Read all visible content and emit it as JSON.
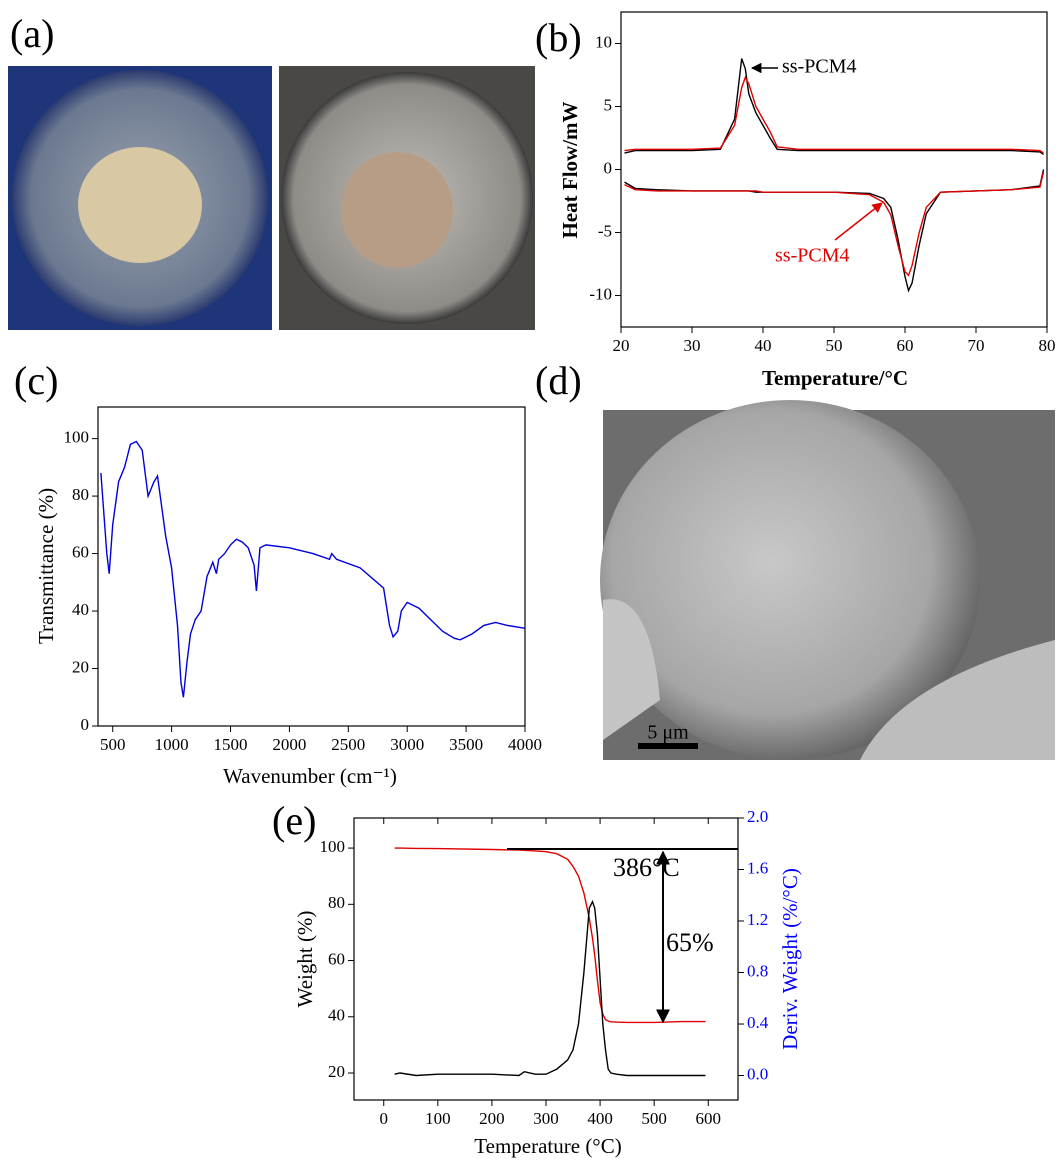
{
  "panel_labels": [
    "(a)",
    "(b)",
    "(c)",
    "(d)",
    "(e)"
  ],
  "scale_bar": "5 μm",
  "chart_data": [
    {
      "type": "line",
      "xlabel": "Temperature/°C",
      "ylabel": "Heat Flow/mW",
      "x": [
        20.5,
        22,
        25,
        30,
        34,
        36,
        37,
        37.5,
        38,
        39,
        40,
        41,
        42,
        45,
        50,
        55,
        57,
        58,
        59,
        60,
        60.5,
        61,
        62,
        63,
        65,
        70,
        75,
        79,
        79.5
      ],
      "series": [
        {
          "color": "#000000",
          "values": [
            1.3,
            1.5,
            1.5,
            1.5,
            1.6,
            4,
            8.8,
            8,
            6,
            4.5,
            3.5,
            2.5,
            1.6,
            1.5,
            1.5,
            1.5,
            1.5,
            1.5,
            1.5,
            1.5,
            1.5,
            1.5,
            1.5,
            1.5,
            1.5,
            1.5,
            1.5,
            1.4,
            1.2
          ]
        },
        {
          "color": "#000000",
          "values": [
            -1.0,
            -1.5,
            -1.6,
            -1.7,
            -1.7,
            -1.7,
            -1.7,
            -1.7,
            -1.7,
            -1.8,
            -1.8,
            -1.8,
            -1.8,
            -1.8,
            -1.8,
            -1.9,
            -2.3,
            -3,
            -5.5,
            -8.5,
            -9.6,
            -9,
            -6,
            -3.5,
            -1.8,
            -1.7,
            -1.6,
            -1.3,
            0
          ]
        },
        {
          "color": "#e00000",
          "values": [
            1.5,
            1.6,
            1.6,
            1.6,
            1.7,
            3.5,
            6.5,
            7.3,
            6.8,
            5,
            4,
            3,
            1.8,
            1.6,
            1.6,
            1.6,
            1.6,
            1.6,
            1.6,
            1.6,
            1.6,
            1.6,
            1.6,
            1.6,
            1.6,
            1.6,
            1.6,
            1.5,
            1.3
          ]
        },
        {
          "color": "#e00000",
          "values": [
            -1.2,
            -1.6,
            -1.7,
            -1.7,
            -1.7,
            -1.7,
            -1.7,
            -1.7,
            -1.7,
            -1.7,
            -1.8,
            -1.8,
            -1.8,
            -1.8,
            -1.8,
            -2.0,
            -2.6,
            -3.6,
            -6,
            -8.1,
            -8.4,
            -7.6,
            -5,
            -3,
            -1.8,
            -1.7,
            -1.6,
            -1.4,
            -0.2
          ]
        }
      ],
      "annotations": [
        {
          "text": "ss-PCM4",
          "color": "#000000"
        },
        {
          "text": "ss-PCM4",
          "color": "#e00000"
        }
      ],
      "xlim": [
        20,
        80
      ],
      "xticks": [
        20,
        30,
        40,
        50,
        60,
        70,
        80
      ],
      "ylim": [
        -12.5,
        12.5
      ],
      "yticks": [
        -10,
        -5,
        0,
        5,
        10
      ],
      "grid": false
    },
    {
      "type": "line",
      "xlabel": "Wavenumber (cm⁻¹)",
      "ylabel": "Transmittance (%)",
      "x": [
        400,
        450,
        470,
        500,
        550,
        600,
        650,
        700,
        750,
        800,
        850,
        880,
        920,
        950,
        1000,
        1050,
        1080,
        1100,
        1130,
        1160,
        1200,
        1250,
        1300,
        1350,
        1380,
        1400,
        1450,
        1500,
        1550,
        1600,
        1650,
        1700,
        1720,
        1750,
        1800,
        2000,
        2200,
        2340,
        2360,
        2400,
        2600,
        2800,
        2850,
        2880,
        2920,
        2950,
        3000,
        3100,
        3200,
        3300,
        3400,
        3450,
        3550,
        3650,
        3750,
        3850,
        4000
      ],
      "series": [
        {
          "color": "#0000dd",
          "values": [
            88,
            60,
            53,
            70,
            85,
            90,
            98,
            99,
            96,
            80,
            85,
            87,
            75,
            66,
            55,
            35,
            15,
            10,
            22,
            32,
            37,
            40,
            52,
            57,
            53,
            58,
            60,
            63,
            65,
            64,
            62,
            56,
            47,
            62,
            63,
            62,
            60,
            58,
            60,
            58,
            55,
            48,
            35,
            31,
            33,
            40,
            43,
            41,
            37,
            33,
            30.5,
            30,
            32,
            35,
            36,
            35,
            34
          ]
        }
      ],
      "xlim": [
        375,
        4000
      ],
      "xticks": [
        500,
        1000,
        1500,
        2000,
        2500,
        3000,
        3500,
        4000
      ],
      "ylim": [
        0,
        111
      ],
      "yticks": [
        0,
        20,
        40,
        60,
        80,
        100
      ],
      "grid": false
    },
    {
      "type": "line",
      "xlabel": "Temperature (°C)",
      "ylabel": "Weight (%)",
      "y2label": "Deriv. Weight (%/°C)",
      "y2color": "#0000ff",
      "x": [
        20,
        30,
        60,
        100,
        200,
        250,
        260,
        280,
        300,
        320,
        340,
        350,
        360,
        370,
        380,
        386,
        390,
        395,
        400,
        405,
        410,
        415,
        420,
        430,
        450,
        500,
        550,
        595
      ],
      "series": [
        {
          "color": "#e00000",
          "values": [
            100,
            100,
            99.9,
            99.8,
            99.5,
            99.3,
            99.2,
            99,
            98.7,
            98,
            96,
            93.5,
            90,
            84,
            75,
            68,
            62,
            53,
            45,
            41,
            39,
            38.5,
            38.2,
            38.1,
            38,
            38,
            38.3,
            38.3
          ]
        },
        {
          "color": "#000000",
          "axis": "y2",
          "values": [
            0.01,
            0.02,
            0.0,
            0.01,
            0.01,
            0.0,
            0.03,
            0.01,
            0.01,
            0.05,
            0.12,
            0.2,
            0.4,
            0.8,
            1.3,
            1.35,
            1.3,
            1.1,
            0.75,
            0.4,
            0.2,
            0.05,
            0.02,
            0.01,
            0.0,
            0.0,
            0.0,
            0.0
          ]
        }
      ],
      "annotations": [
        {
          "text": "386°C",
          "color": "#000000"
        },
        {
          "text": "65%",
          "color": "#000000"
        }
      ],
      "xlim": [
        -55,
        655
      ],
      "xticks": [
        0,
        100,
        200,
        300,
        400,
        500,
        600
      ],
      "ylim": [
        10.4,
        110.7
      ],
      "yticks": [
        20,
        40,
        60,
        80,
        100
      ],
      "y2lim": [
        -0.19,
        2.0
      ],
      "y2ticks": [
        {
          "value": 0,
          "label": "0.0"
        },
        0.4,
        0.8,
        1.2,
        1.6,
        {
          "value": 2,
          "label": "2.0"
        }
      ],
      "grid": false
    }
  ]
}
